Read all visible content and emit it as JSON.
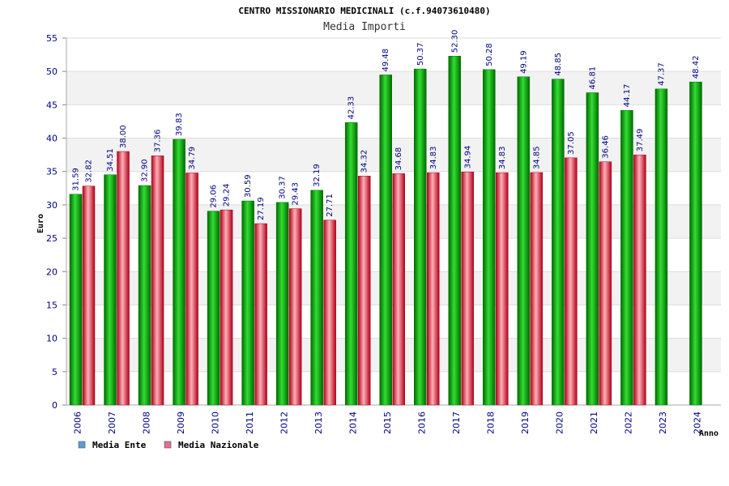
{
  "chart_data": {
    "type": "bar",
    "title": "CENTRO MISSIONARIO MEDICINALI (c.f.94073610480)",
    "subtitle": "Media Importi",
    "ylabel": "Euro",
    "xlabel": "Anno",
    "ylim": [
      0,
      55
    ],
    "ytick_step": 5,
    "categories": [
      "2006",
      "2007",
      "2008",
      "2009",
      "2010",
      "2011",
      "2012",
      "2013",
      "2014",
      "2015",
      "2016",
      "2017",
      "2018",
      "2019",
      "2020",
      "2021",
      "2022",
      "2023",
      "2024"
    ],
    "series": [
      {
        "name": "Media Ente",
        "color": "#00a000",
        "legend_color": "#5b9bd5",
        "values": [
          31.59,
          34.51,
          32.9,
          39.83,
          29.06,
          30.59,
          30.37,
          32.19,
          42.33,
          49.48,
          50.37,
          52.3,
          50.28,
          49.19,
          48.85,
          46.81,
          44.17,
          47.37,
          48.42
        ],
        "labels": [
          "31.59",
          "34.51",
          "32.90",
          "39.83",
          "29.06",
          "30.59",
          "30.37",
          "32.19",
          "42.33",
          "49.48",
          "50.37",
          "52.30",
          "50.28",
          "49.19",
          "48.85",
          "46.81",
          "44.17",
          "47.37",
          "48.42"
        ]
      },
      {
        "name": "Media Nazionale",
        "color": "#e03040",
        "legend_color": "#e07090",
        "values": [
          32.82,
          38.0,
          37.36,
          34.79,
          29.24,
          27.19,
          29.43,
          27.71,
          34.32,
          34.68,
          34.83,
          34.94,
          34.83,
          34.85,
          37.05,
          36.46,
          37.49,
          null,
          null
        ],
        "labels": [
          "32.82",
          "38.00",
          "37.36",
          "34.79",
          "29.24",
          "27.19",
          "29.43",
          "27.71",
          "34.32",
          "34.68",
          "34.83",
          "34.94",
          "34.83",
          "34.85",
          "37.05",
          "36.46",
          "37.49",
          null,
          null
        ]
      }
    ],
    "grid": true,
    "legend_position": "bottom-left"
  }
}
